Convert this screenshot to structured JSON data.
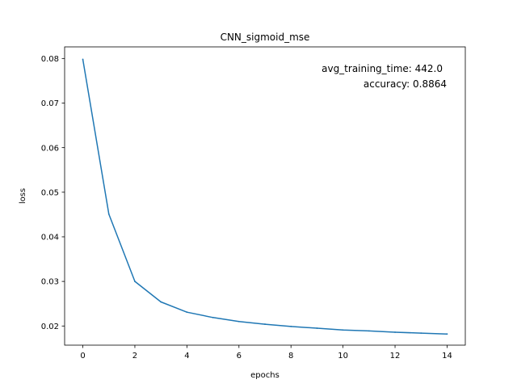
{
  "chart_data": {
    "type": "line",
    "title": "CNN_sigmoid_mse",
    "xlabel": "epochs",
    "ylabel": "loss",
    "xlim": [
      -0.7,
      14.7
    ],
    "ylim": [
      0.0157,
      0.0826
    ],
    "xticks": [
      0,
      2,
      4,
      6,
      8,
      10,
      12,
      14
    ],
    "xtick_labels": [
      "0",
      "2",
      "4",
      "6",
      "8",
      "10",
      "12",
      "14"
    ],
    "yticks": [
      0.02,
      0.03,
      0.04,
      0.05,
      0.06,
      0.07,
      0.08
    ],
    "ytick_labels": [
      "0.02",
      "0.03",
      "0.04",
      "0.05",
      "0.06",
      "0.07",
      "0.08"
    ],
    "grid": false,
    "annotations": [
      "avg_training_time: 442.0",
      "accuracy: 0.8864"
    ],
    "series": [
      {
        "color": "#1f77b4",
        "x": [
          0,
          1,
          2,
          3,
          4,
          5,
          6,
          7,
          8,
          9,
          10,
          11,
          12,
          13,
          14
        ],
        "y": [
          0.0798,
          0.0451,
          0.03,
          0.0254,
          0.0231,
          0.0219,
          0.021,
          0.0204,
          0.0199,
          0.0195,
          0.0191,
          0.0189,
          0.0186,
          0.0184,
          0.0182
        ]
      }
    ]
  }
}
